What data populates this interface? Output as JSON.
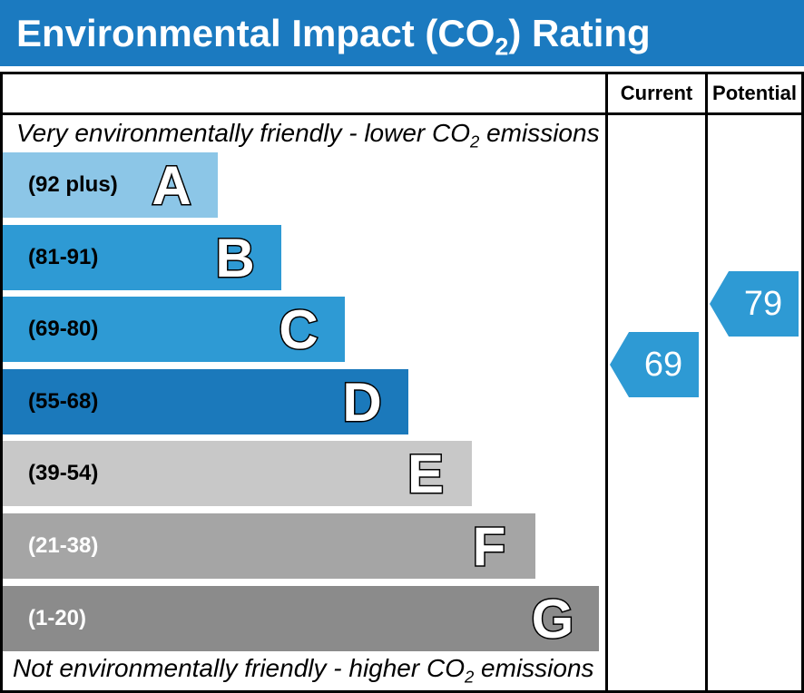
{
  "title": {
    "prefix": "Environmental Impact (CO",
    "sub": "2",
    "suffix": ") Rating"
  },
  "header": {
    "current_label": "Current",
    "potential_label": "Potential"
  },
  "notes": {
    "top": {
      "prefix": "Very environmentally friendly - lower CO",
      "sub": "2",
      "suffix": " emissions"
    },
    "bottom": {
      "prefix": "Not environmentally friendly - higher CO",
      "sub": "2",
      "suffix": " emissions"
    }
  },
  "bands": [
    {
      "letter": "A",
      "range_label": "(92 plus)",
      "color": "#8cc6e7",
      "label_color": "#000000"
    },
    {
      "letter": "B",
      "range_label": "(81-91)",
      "color": "#2e9ad4",
      "label_color": "#000000"
    },
    {
      "letter": "C",
      "range_label": "(69-80)",
      "color": "#2e9ad4",
      "label_color": "#000000"
    },
    {
      "letter": "D",
      "range_label": "(55-68)",
      "color": "#1b79bb",
      "label_color": "#000000"
    },
    {
      "letter": "E",
      "range_label": "(39-54)",
      "color": "#c8c8c8",
      "label_color": "#000000"
    },
    {
      "letter": "F",
      "range_label": "(21-38)",
      "color": "#a5a5a5",
      "label_color": "#ffffff"
    },
    {
      "letter": "G",
      "range_label": "(1-20)",
      "color": "#8b8b8b",
      "label_color": "#ffffff"
    }
  ],
  "ratings": {
    "current": {
      "value": "69",
      "arrow_color": "#2e9ad4"
    },
    "potential": {
      "value": "79",
      "arrow_color": "#2e9ad4"
    }
  },
  "colors": {
    "title_bar": "#1b7ac0",
    "border": "#000000"
  },
  "chart_data": {
    "type": "bar",
    "title": "Environmental Impact (CO2) Rating",
    "top_annotation": "Very environmentally friendly - lower CO2 emissions",
    "bottom_annotation": "Not environmentally friendly - higher CO2 emissions",
    "columns": [
      "Current",
      "Potential"
    ],
    "bands": [
      {
        "letter": "A",
        "range": "92 plus",
        "relative_length": 1
      },
      {
        "letter": "B",
        "range": "81-91",
        "relative_length": 2
      },
      {
        "letter": "C",
        "range": "69-80",
        "relative_length": 3
      },
      {
        "letter": "D",
        "range": "55-68",
        "relative_length": 4
      },
      {
        "letter": "E",
        "range": "39-54",
        "relative_length": 5
      },
      {
        "letter": "F",
        "range": "21-38",
        "relative_length": 6
      },
      {
        "letter": "G",
        "range": "1-20",
        "relative_length": 7
      }
    ],
    "current": 69,
    "current_band": "C",
    "potential": 79,
    "potential_band": "C"
  }
}
